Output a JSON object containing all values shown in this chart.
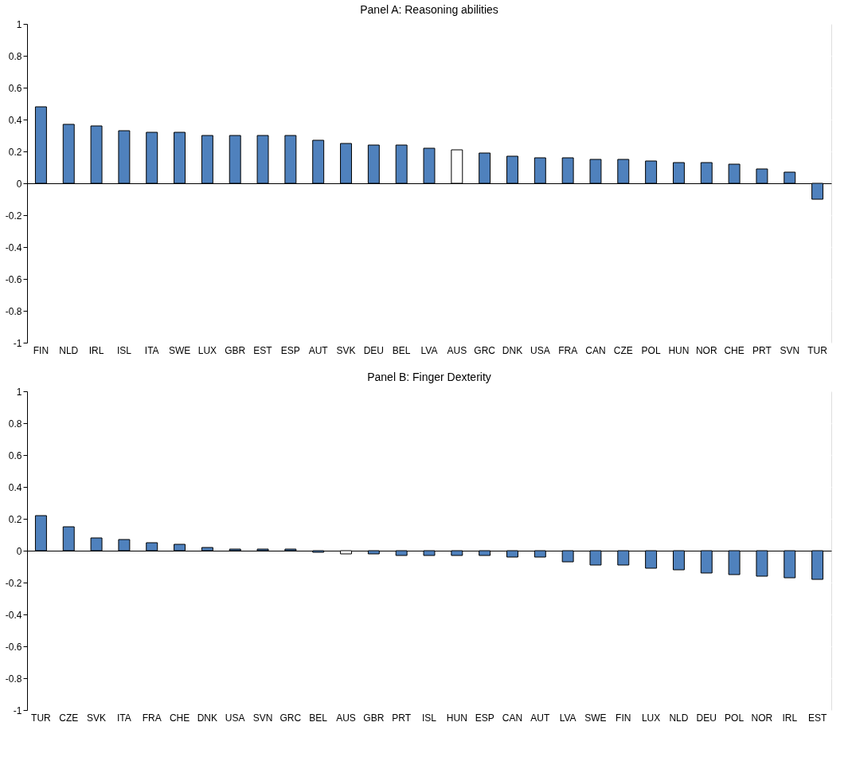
{
  "chart_data": [
    {
      "type": "bar",
      "title": "Panel A: Reasoning abilities",
      "categories": [
        "FIN",
        "NLD",
        "IRL",
        "ISL",
        "ITA",
        "SWE",
        "LUX",
        "GBR",
        "EST",
        "ESP",
        "AUT",
        "SVK",
        "DEU",
        "BEL",
        "LVA",
        "AUS",
        "GRC",
        "DNK",
        "USA",
        "FRA",
        "CAN",
        "CZE",
        "POL",
        "HUN",
        "NOR",
        "CHE",
        "PRT",
        "SVN",
        "TUR"
      ],
      "values": [
        0.48,
        0.37,
        0.36,
        0.33,
        0.32,
        0.32,
        0.3,
        0.3,
        0.3,
        0.3,
        0.27,
        0.25,
        0.24,
        0.24,
        0.22,
        0.21,
        0.19,
        0.17,
        0.16,
        0.16,
        0.15,
        0.15,
        0.14,
        0.13,
        0.13,
        0.12,
        0.09,
        0.07,
        -0.1
      ],
      "colors": [
        "#4f81bd",
        "#4f81bd",
        "#4f81bd",
        "#4f81bd",
        "#4f81bd",
        "#4f81bd",
        "#4f81bd",
        "#4f81bd",
        "#4f81bd",
        "#4f81bd",
        "#4f81bd",
        "#4f81bd",
        "#4f81bd",
        "#4f81bd",
        "#4f81bd",
        "#ffffff",
        "#4f81bd",
        "#4f81bd",
        "#4f81bd",
        "#4f81bd",
        "#4f81bd",
        "#4f81bd",
        "#4f81bd",
        "#4f81bd",
        "#4f81bd",
        "#4f81bd",
        "#4f81bd",
        "#4f81bd",
        "#4f81bd"
      ],
      "ylim": [
        -1,
        1
      ],
      "yticks": [
        -1,
        -0.8,
        -0.6,
        -0.4,
        -0.2,
        0,
        0.2,
        0.4,
        0.6,
        0.8,
        1
      ],
      "grid": "y"
    },
    {
      "type": "bar",
      "title": "Panel B: Finger Dexterity",
      "categories": [
        "TUR",
        "CZE",
        "SVK",
        "ITA",
        "FRA",
        "CHE",
        "DNK",
        "USA",
        "SVN",
        "GRC",
        "BEL",
        "AUS",
        "GBR",
        "PRT",
        "ISL",
        "HUN",
        "ESP",
        "CAN",
        "AUT",
        "LVA",
        "SWE",
        "FIN",
        "LUX",
        "NLD",
        "DEU",
        "POL",
        "NOR",
        "IRL",
        "EST"
      ],
      "values": [
        0.22,
        0.15,
        0.08,
        0.07,
        0.05,
        0.04,
        0.02,
        0.01,
        0.01,
        0.01,
        -0.01,
        -0.02,
        -0.02,
        -0.03,
        -0.03,
        -0.03,
        -0.03,
        -0.04,
        -0.04,
        -0.07,
        -0.09,
        -0.09,
        -0.11,
        -0.12,
        -0.14,
        -0.15,
        -0.16,
        -0.17,
        -0.18
      ],
      "colors": [
        "#4f81bd",
        "#4f81bd",
        "#4f81bd",
        "#4f81bd",
        "#4f81bd",
        "#4f81bd",
        "#4f81bd",
        "#4f81bd",
        "#4f81bd",
        "#4f81bd",
        "#4f81bd",
        "#ffffff",
        "#4f81bd",
        "#4f81bd",
        "#4f81bd",
        "#4f81bd",
        "#4f81bd",
        "#4f81bd",
        "#4f81bd",
        "#4f81bd",
        "#4f81bd",
        "#4f81bd",
        "#4f81bd",
        "#4f81bd",
        "#4f81bd",
        "#4f81bd",
        "#4f81bd",
        "#4f81bd",
        "#4f81bd"
      ],
      "ylim": [
        -1,
        1
      ],
      "yticks": [
        -1,
        -0.8,
        -0.6,
        -0.4,
        -0.2,
        0,
        0.2,
        0.4,
        0.6,
        0.8,
        1
      ],
      "grid": "y"
    }
  ]
}
